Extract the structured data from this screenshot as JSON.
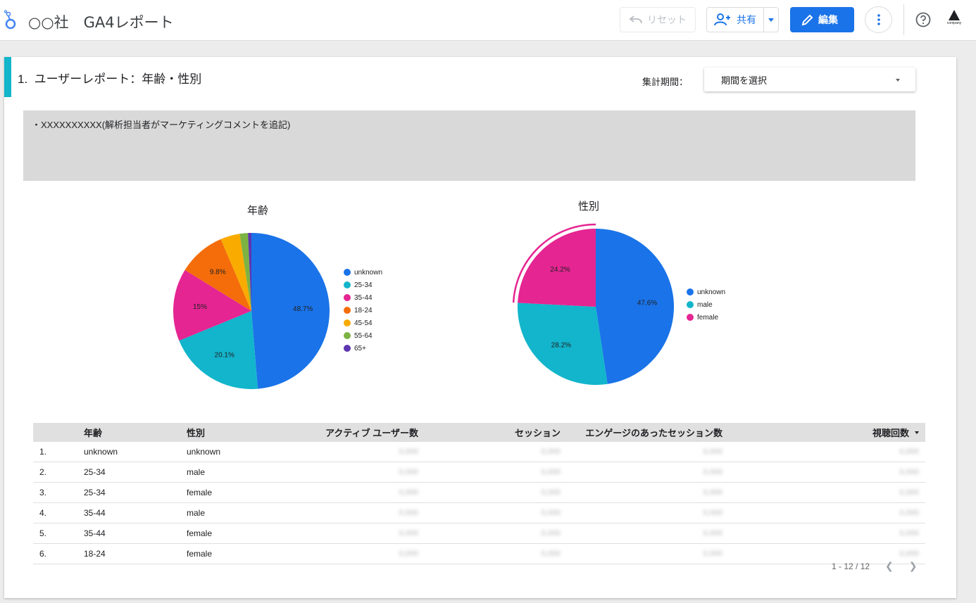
{
  "header": {
    "title": "○○社　GA4レポート",
    "reset_label": "リセット",
    "share_label": "共有",
    "edit_label": "編集",
    "company_logo_text": "company"
  },
  "section": {
    "title": "1.  ユーザーレポート：年齢・性別",
    "period_label": "集計期間：",
    "period_select_value": "期間を選択",
    "comment": "・XXXXXXXXXX(解析担当者がマーケティングコメントを追記)"
  },
  "chart_data": [
    {
      "type": "pie",
      "title": "年齢",
      "categories": [
        "unknown",
        "25-34",
        "35-44",
        "18-24",
        "45-54",
        "55-64",
        "65+"
      ],
      "values": [
        48.7,
        20.1,
        15.0,
        9.8,
        4.0,
        1.7,
        0.7
      ],
      "labels": [
        "48.7%",
        "20.1%",
        "15%",
        "9.8%",
        "",
        "",
        ""
      ],
      "colors": [
        "#1a73e8",
        "#12b5cb",
        "#e52592",
        "#f46d0a",
        "#f9ab00",
        "#7cb342",
        "#5e35b1"
      ]
    },
    {
      "type": "pie",
      "title": "性別",
      "categories": [
        "unknown",
        "male",
        "female"
      ],
      "values": [
        47.6,
        28.2,
        24.2
      ],
      "labels": [
        "47.6%",
        "28.2%",
        "24.2%"
      ],
      "colors": [
        "#1a73e8",
        "#12b5cb",
        "#e52592"
      ],
      "highlighted": "female"
    }
  ],
  "table": {
    "columns": [
      "年齢",
      "性別",
      "アクティブ ユーザー数",
      "セッション",
      "エンゲージのあったセッション数",
      "視聴回数"
    ],
    "rows": [
      {
        "idx": "1.",
        "age": "unknown",
        "gender": "unknown"
      },
      {
        "idx": "2.",
        "age": "25-34",
        "gender": "male"
      },
      {
        "idx": "3.",
        "age": "25-34",
        "gender": "female"
      },
      {
        "idx": "4.",
        "age": "35-44",
        "gender": "male"
      },
      {
        "idx": "5.",
        "age": "35-44",
        "gender": "female"
      },
      {
        "idx": "6.",
        "age": "18-24",
        "gender": "female"
      }
    ],
    "masked_value": "0,000",
    "pager": "1 - 12 / 12"
  }
}
